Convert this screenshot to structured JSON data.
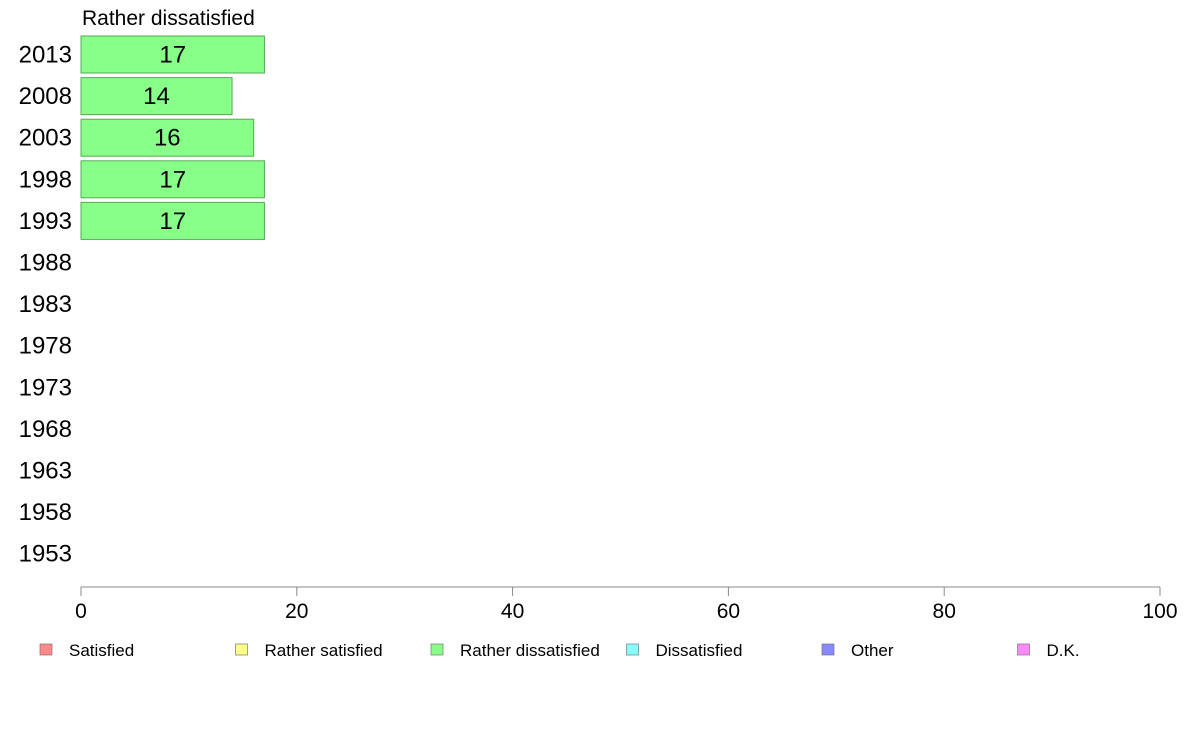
{
  "chart_data": {
    "type": "bar",
    "orientation": "horizontal",
    "title": "Rather dissatisfied",
    "categories": [
      "2013",
      "2008",
      "2003",
      "1998",
      "1993",
      "1988",
      "1983",
      "1978",
      "1973",
      "1968",
      "1963",
      "1958",
      "1953"
    ],
    "series": [
      {
        "name": "Rather dissatisfied",
        "color": "#88ff88",
        "values": [
          17,
          14,
          16,
          17,
          17,
          null,
          null,
          null,
          null,
          null,
          null,
          null,
          null
        ]
      }
    ],
    "xlim": [
      0,
      100
    ],
    "xticks": [
      0,
      20,
      40,
      60,
      80,
      100
    ],
    "grid": false,
    "legend_position": "bottom",
    "legend": [
      {
        "label": "Satisfied",
        "color": "#ff8888"
      },
      {
        "label": "Rather satisfied",
        "color": "#ffff88"
      },
      {
        "label": "Rather dissatisfied",
        "color": "#88ff88"
      },
      {
        "label": "Dissatisfied",
        "color": "#88ffff"
      },
      {
        "label": "Other",
        "color": "#8888ff"
      },
      {
        "label": "D.K.",
        "color": "#ff88ff"
      }
    ]
  }
}
